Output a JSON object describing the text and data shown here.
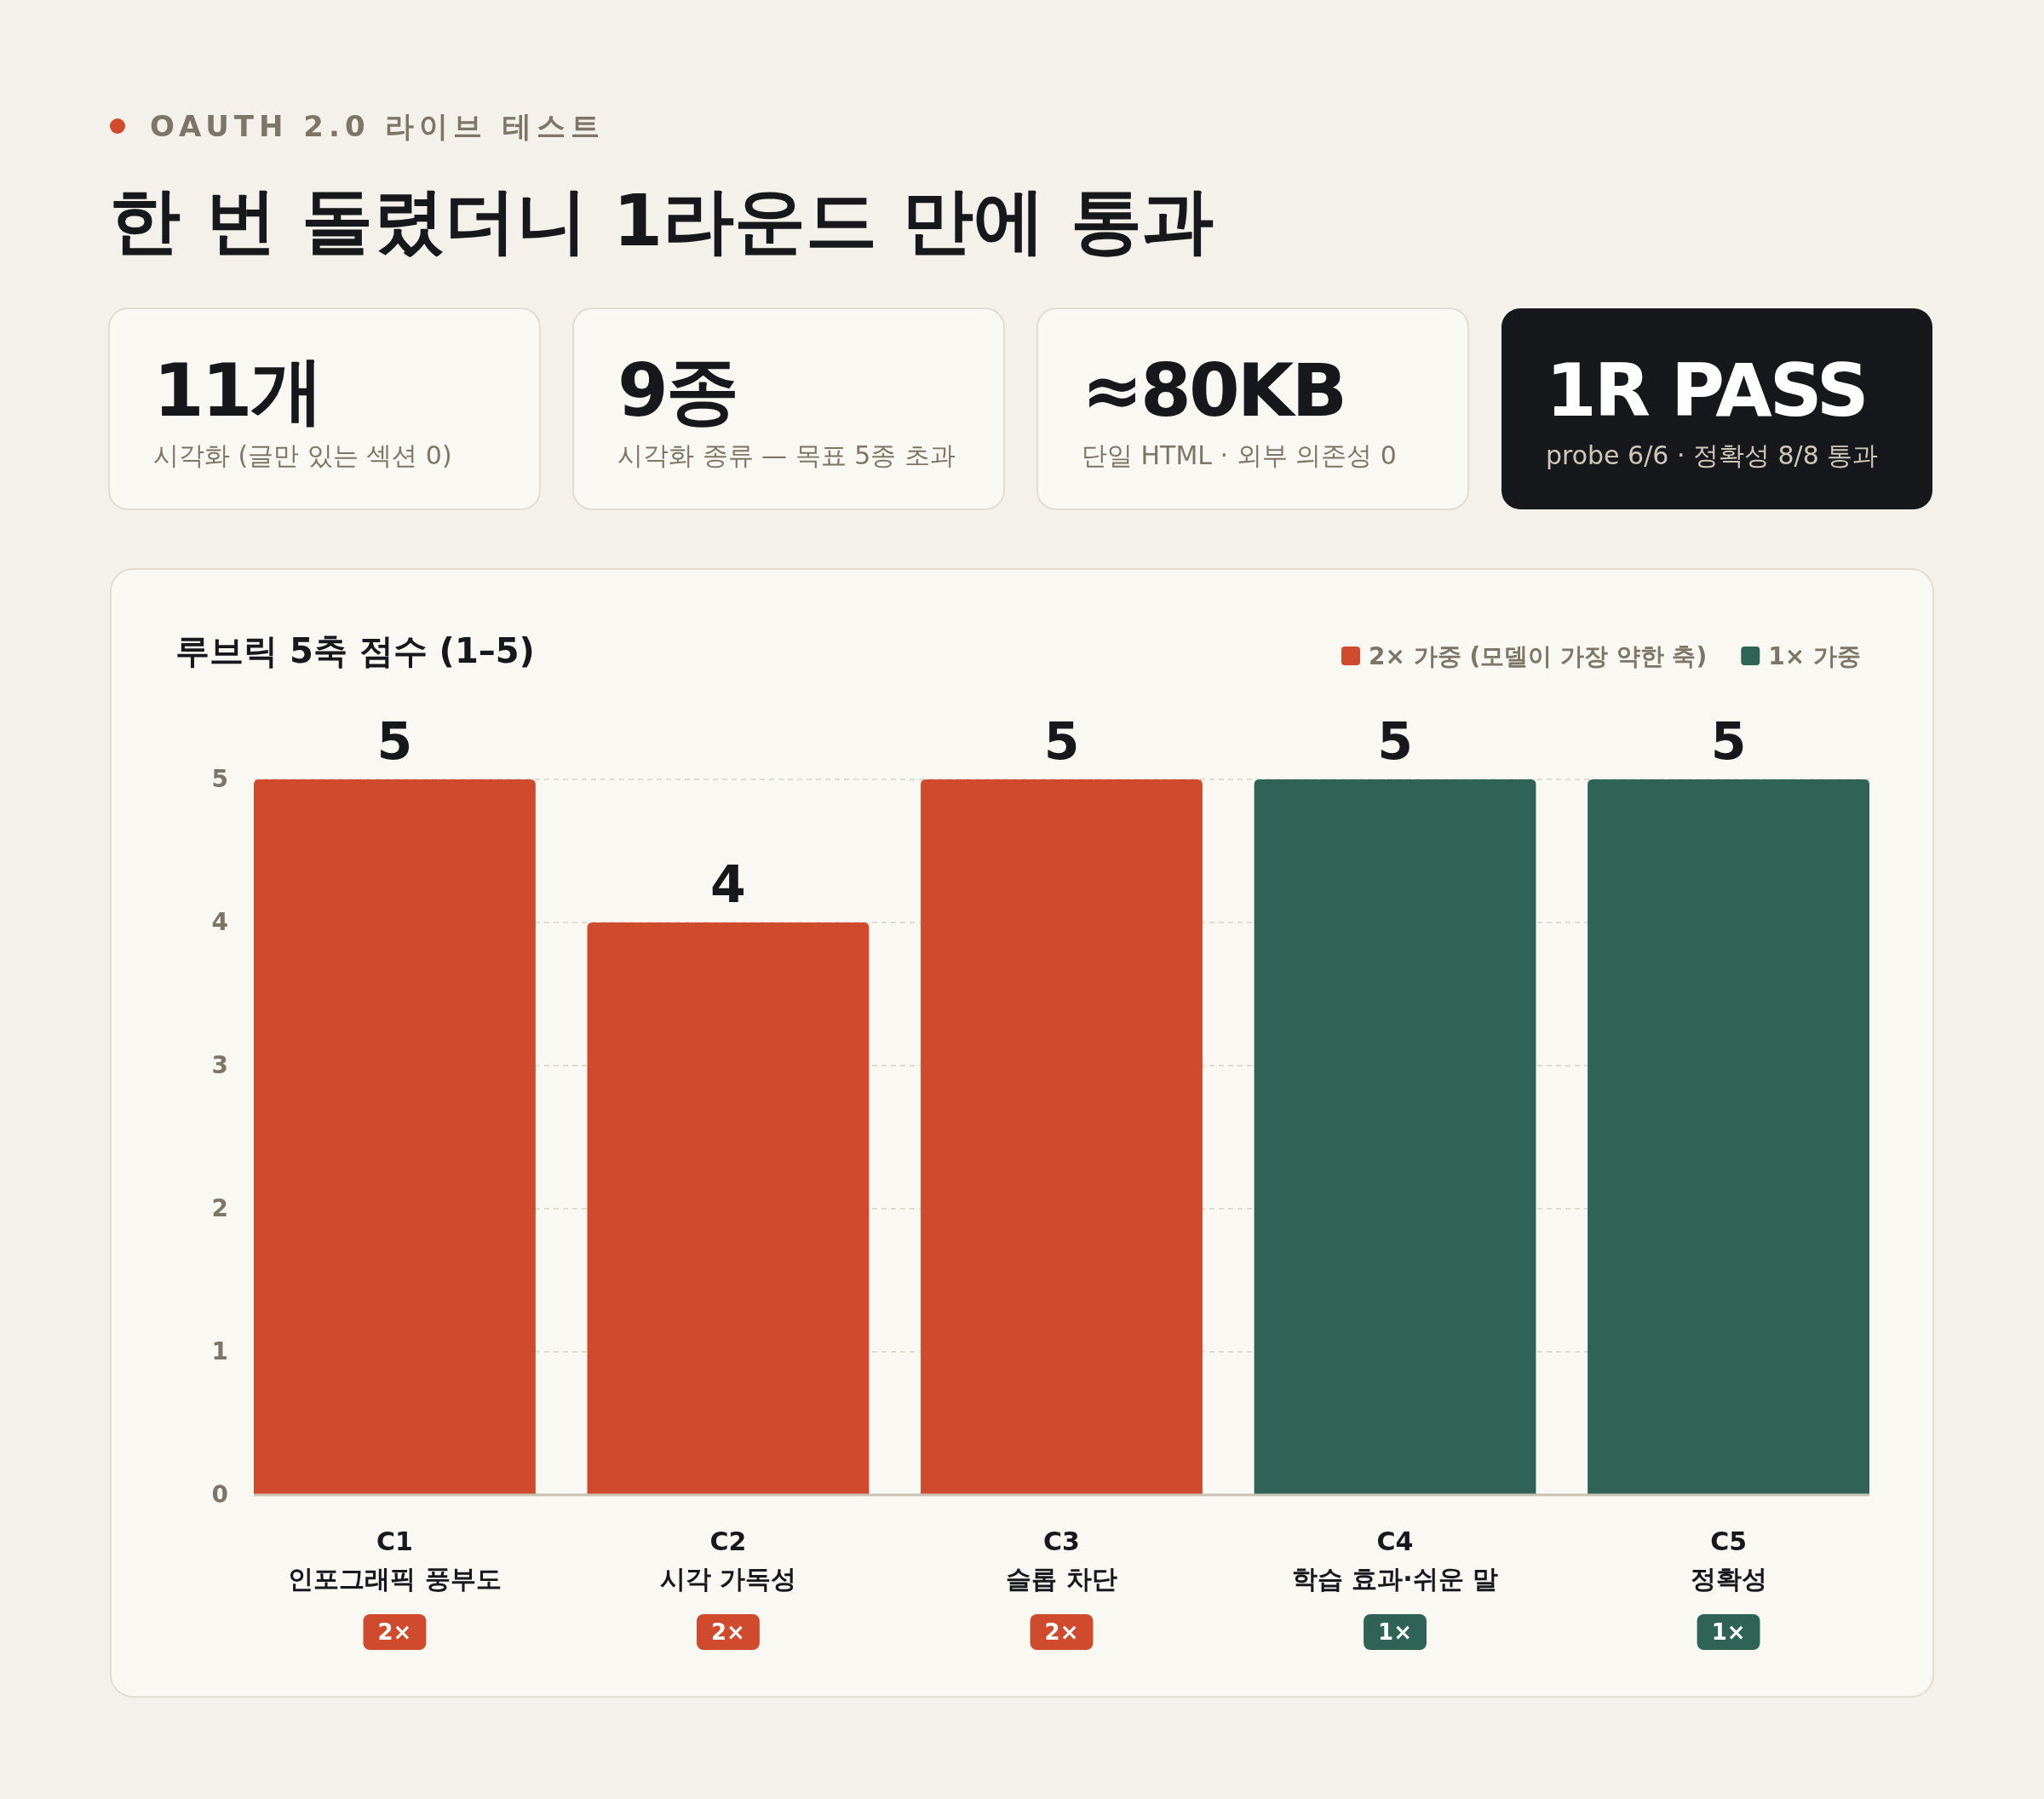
{
  "chart_data": [
    {
      "type": "other",
      "subtitle": "OAUTH 2.0 라이브 테스트",
      "title": "한 번 돌렸더니 1라운드 만에 통과",
      "annotations": [
        "11개",
        "시각화 (글만 있는 섹션 0)",
        "9종",
        "시각화 종류 — 목표 5종 초과",
        "≈80KB",
        "단일 HTML · 외부 의존성 0",
        "1R PASS",
        "probe 6/6 · 정확성 8/8 통과"
      ]
    },
    {
      "type": "bar",
      "title": "루브릭 5축 점수 (1–5)",
      "categories": [
        "C1\n인포그래픽 풍부도\n2×",
        "C2\n시각 가독성\n2×",
        "C3\n슬롭 차단\n2×",
        "C4\n학습 효과·쉬운 말\n1×",
        "C5\n정확성\n1×"
      ],
      "series": [
        {
          "name": "2× 가중 (모델이 가장 약한 축)",
          "color": "#d04b2e",
          "values": [
            5,
            4,
            5,
            null,
            null
          ]
        },
        {
          "name": "1× 가중",
          "color": "#2f6356",
          "values": [
            null,
            null,
            null,
            5,
            5
          ]
        }
      ],
      "ylim": [
        0,
        5
      ],
      "yticks": [
        0,
        1,
        2,
        3,
        4,
        5
      ],
      "grid": "y",
      "legend": "top right",
      "data_labels": true
    }
  ]
}
